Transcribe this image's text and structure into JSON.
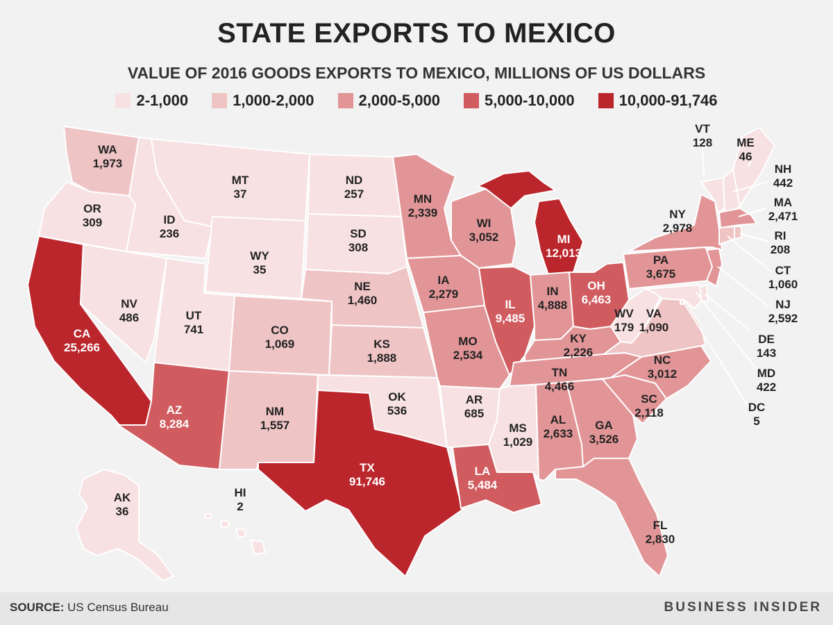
{
  "title": "STATE EXPORTS TO MEXICO",
  "subtitle": "VALUE OF 2016 GOODS EXPORTS TO MEXICO, MILLIONS OF US DOLLARS",
  "legend": [
    {
      "label": "2-1,000",
      "color": "#f7e1e2"
    },
    {
      "label": "1,000-2,000",
      "color": "#efc4c5"
    },
    {
      "label": "2,000-5,000",
      "color": "#e29597"
    },
    {
      "label": "5,000-10,000",
      "color": "#d05c60"
    },
    {
      "label": "10,000-91,746",
      "color": "#bb262c"
    }
  ],
  "states": {
    "WA": {
      "abbr": "WA",
      "value": "1,973"
    },
    "OR": {
      "abbr": "OR",
      "value": "309"
    },
    "CA": {
      "abbr": "CA",
      "value": "25,266"
    },
    "ID": {
      "abbr": "ID",
      "value": "236"
    },
    "NV": {
      "abbr": "NV",
      "value": "486"
    },
    "MT": {
      "abbr": "MT",
      "value": "37"
    },
    "WY": {
      "abbr": "WY",
      "value": "35"
    },
    "UT": {
      "abbr": "UT",
      "value": "741"
    },
    "AZ": {
      "abbr": "AZ",
      "value": "8,284"
    },
    "CO": {
      "abbr": "CO",
      "value": "1,069"
    },
    "NM": {
      "abbr": "NM",
      "value": "1,557"
    },
    "ND": {
      "abbr": "ND",
      "value": "257"
    },
    "SD": {
      "abbr": "SD",
      "value": "308"
    },
    "NE": {
      "abbr": "NE",
      "value": "1,460"
    },
    "KS": {
      "abbr": "KS",
      "value": "1,888"
    },
    "OK": {
      "abbr": "OK",
      "value": "536"
    },
    "TX": {
      "abbr": "TX",
      "value": "91,746"
    },
    "MN": {
      "abbr": "MN",
      "value": "2,339"
    },
    "IA": {
      "abbr": "IA",
      "value": "2,279"
    },
    "MO": {
      "abbr": "MO",
      "value": "2,534"
    },
    "AR": {
      "abbr": "AR",
      "value": "685"
    },
    "LA": {
      "abbr": "LA",
      "value": "5,484"
    },
    "WI": {
      "abbr": "WI",
      "value": "3,052"
    },
    "IL": {
      "abbr": "IL",
      "value": "9,485"
    },
    "MI": {
      "abbr": "MI",
      "value": "12,013"
    },
    "IN": {
      "abbr": "IN",
      "value": "4,888"
    },
    "OH": {
      "abbr": "OH",
      "value": "6,463"
    },
    "KY": {
      "abbr": "KY",
      "value": "2,226"
    },
    "TN": {
      "abbr": "TN",
      "value": "4,466"
    },
    "MS": {
      "abbr": "MS",
      "value": "1,029"
    },
    "AL": {
      "abbr": "AL",
      "value": "2,633"
    },
    "GA": {
      "abbr": "GA",
      "value": "3,526"
    },
    "FL": {
      "abbr": "FL",
      "value": "2,830"
    },
    "SC": {
      "abbr": "SC",
      "value": "2,118"
    },
    "NC": {
      "abbr": "NC",
      "value": "3,012"
    },
    "VA": {
      "abbr": "VA",
      "value": "1,090"
    },
    "WV": {
      "abbr": "WV",
      "value": "179"
    },
    "PA": {
      "abbr": "PA",
      "value": "3,675"
    },
    "NY": {
      "abbr": "NY",
      "value": "2,978"
    },
    "VT": {
      "abbr": "VT",
      "value": "128"
    },
    "ME": {
      "abbr": "ME",
      "value": "46"
    },
    "NH": {
      "abbr": "NH",
      "value": "442"
    },
    "MA": {
      "abbr": "MA",
      "value": "2,471"
    },
    "RI": {
      "abbr": "RI",
      "value": "208"
    },
    "CT": {
      "abbr": "CT",
      "value": "1,060"
    },
    "NJ": {
      "abbr": "NJ",
      "value": "2,592"
    },
    "DE": {
      "abbr": "DE",
      "value": "143"
    },
    "MD": {
      "abbr": "MD",
      "value": "422"
    },
    "DC": {
      "abbr": "DC",
      "value": "5"
    },
    "AK": {
      "abbr": "AK",
      "value": "36"
    },
    "HI": {
      "abbr": "HI",
      "value": "2"
    }
  },
  "footer": {
    "source_label": "SOURCE:",
    "source_text": "US Census Bureau",
    "brand": "BUSINESS INSIDER"
  }
}
